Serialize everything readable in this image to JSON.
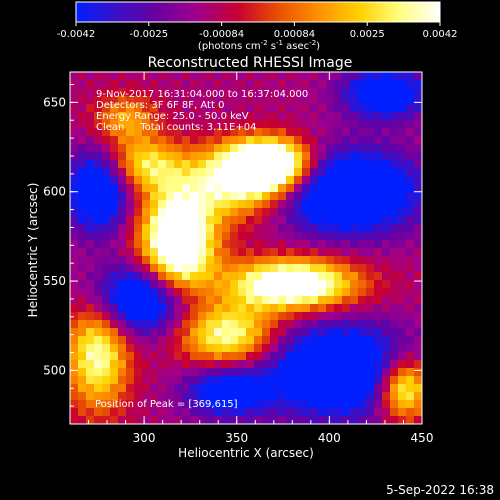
{
  "colorbar": {
    "ticks": [
      "-0.0042",
      "-0.0025",
      "-0.00084",
      "0.00084",
      "0.0025",
      "0.0042"
    ],
    "unit_main": "(photons cm",
    "unit_exp1": "-2",
    "unit_mid": " s",
    "unit_exp2": "-1",
    "unit_tail": " asec",
    "unit_exp3": "-2",
    "unit_end": ")",
    "colors": [
      "#0020ff",
      "#3a10c8",
      "#6a00a0",
      "#a0008a",
      "#c80030",
      "#e85000",
      "#ff9000",
      "#ffd000",
      "#ffff80",
      "#ffffff"
    ]
  },
  "chart_data": {
    "type": "heatmap",
    "title": "Reconstructed RHESSI Image",
    "xlabel": "Heliocentric X (arcsec)",
    "ylabel": "Heliocentric Y (arcsec)",
    "xlim": [
      260,
      450
    ],
    "ylim": [
      470,
      667
    ],
    "x_ticks": [
      "300",
      "350",
      "400",
      "450"
    ],
    "y_ticks": [
      "500",
      "550",
      "600",
      "650"
    ],
    "annotations": [
      "9-Nov-2017 16:31:04.000 to 16:37:04.000",
      "Detectors: 3F 6F 8F, Att 0",
      "Energy Range: 25.0 - 50.0 keV",
      "Clean     Total counts: 3.11E+04"
    ],
    "peak_label": "Position of Peak = [369,615]",
    "peak": [
      369,
      615
    ],
    "sources": [
      {
        "x": 368,
        "y": 615,
        "amp": 1.0,
        "sx": 16,
        "sy": 10
      },
      {
        "x": 318,
        "y": 570,
        "amp": 0.95,
        "sx": 14,
        "sy": 22
      },
      {
        "x": 350,
        "y": 605,
        "amp": 0.55,
        "sx": 20,
        "sy": 14
      },
      {
        "x": 380,
        "y": 548,
        "amp": 0.85,
        "sx": 24,
        "sy": 10
      },
      {
        "x": 345,
        "y": 520,
        "amp": 0.6,
        "sx": 18,
        "sy": 12
      },
      {
        "x": 275,
        "y": 510,
        "amp": 0.6,
        "sx": 12,
        "sy": 22
      },
      {
        "x": 300,
        "y": 615,
        "amp": 0.45,
        "sx": 14,
        "sy": 10
      },
      {
        "x": 440,
        "y": 490,
        "amp": 0.7,
        "sx": 10,
        "sy": 12
      },
      {
        "x": 290,
        "y": 640,
        "amp": 0.35,
        "sx": 12,
        "sy": 10
      }
    ],
    "holes": [
      {
        "x": 410,
        "y": 600,
        "amp": -0.75,
        "sx": 26,
        "sy": 16
      },
      {
        "x": 300,
        "y": 540,
        "amp": -0.7,
        "sx": 20,
        "sy": 14
      },
      {
        "x": 405,
        "y": 500,
        "amp": -0.7,
        "sx": 26,
        "sy": 18
      },
      {
        "x": 275,
        "y": 600,
        "amp": -0.6,
        "sx": 12,
        "sy": 16
      },
      {
        "x": 430,
        "y": 655,
        "amp": -0.55,
        "sx": 16,
        "sy": 10
      },
      {
        "x": 345,
        "y": 488,
        "amp": -0.5,
        "sx": 16,
        "sy": 10
      }
    ]
  },
  "footer": {
    "date": "5-Sep-2022 16:38"
  }
}
